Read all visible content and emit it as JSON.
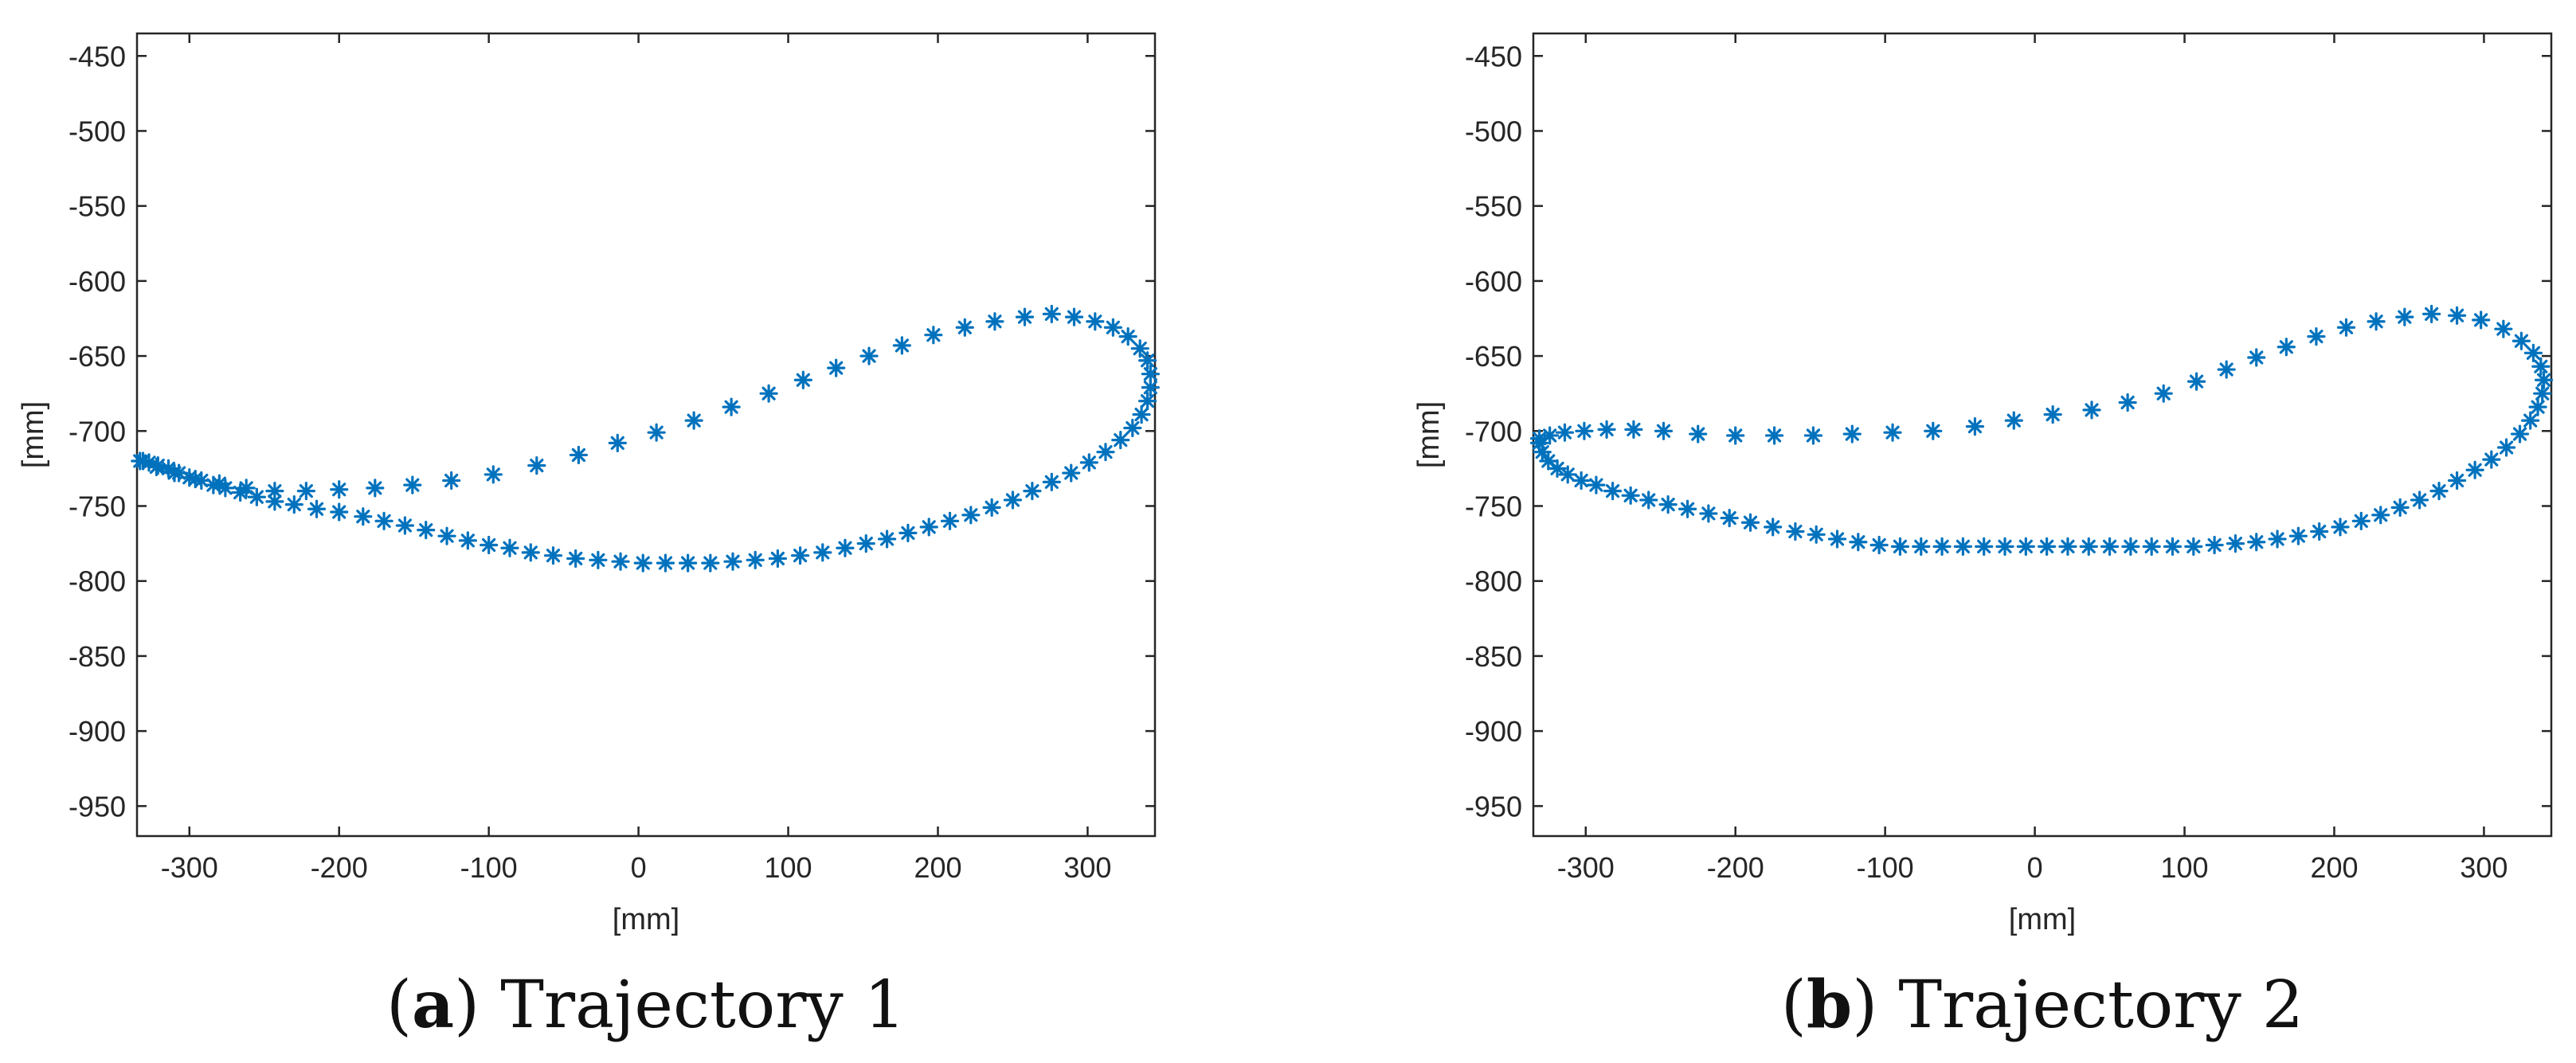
{
  "colors": {
    "marker": "#0072BD",
    "axis": "#262626"
  },
  "panels": [
    {
      "caption_letter": "a",
      "caption_title": "Trajectory 1"
    },
    {
      "caption_letter": "b",
      "caption_title": "Trajectory 2"
    }
  ],
  "chart_data": [
    {
      "type": "scatter",
      "title": "Trajectory 1",
      "marker": "asterisk",
      "xlabel": "[mm]",
      "ylabel": "[mm]",
      "xlim": [
        -335,
        345
      ],
      "ylim": [
        -970,
        -435
      ],
      "xticks": [
        -300,
        -200,
        -100,
        0,
        100,
        200,
        300
      ],
      "yticks": [
        -450,
        -500,
        -550,
        -600,
        -650,
        -700,
        -750,
        -800,
        -850,
        -900,
        -950
      ],
      "points": [
        [
          -333,
          -720
        ],
        [
          -327,
          -721
        ],
        [
          -321,
          -723
        ],
        [
          -314,
          -725
        ],
        [
          -307,
          -728
        ],
        [
          -300,
          -731
        ],
        [
          -292,
          -733
        ],
        [
          -284,
          -736
        ],
        [
          -276,
          -738
        ],
        [
          -266,
          -741
        ],
        [
          -255,
          -744
        ],
        [
          -243,
          -747
        ],
        [
          -230,
          -749
        ],
        [
          -215,
          -752
        ],
        [
          -200,
          -754
        ],
        [
          -184,
          -757
        ],
        [
          -170,
          -760
        ],
        [
          -156,
          -763
        ],
        [
          -142,
          -766
        ],
        [
          -128,
          -770
        ],
        [
          -114,
          -773
        ],
        [
          -100,
          -776
        ],
        [
          -86,
          -778
        ],
        [
          -72,
          -781
        ],
        [
          -57,
          -783
        ],
        [
          -42,
          -785
        ],
        [
          -27,
          -786
        ],
        [
          -12,
          -787
        ],
        [
          3,
          -788
        ],
        [
          18,
          -788
        ],
        [
          33,
          -788
        ],
        [
          48,
          -788
        ],
        [
          63,
          -787
        ],
        [
          78,
          -786
        ],
        [
          93,
          -785
        ],
        [
          108,
          -783
        ],
        [
          123,
          -781
        ],
        [
          138,
          -778
        ],
        [
          152,
          -775
        ],
        [
          166,
          -772
        ],
        [
          180,
          -768
        ],
        [
          194,
          -764
        ],
        [
          208,
          -760
        ],
        [
          222,
          -756
        ],
        [
          236,
          -751
        ],
        [
          250,
          -746
        ],
        [
          263,
          -740
        ],
        [
          276,
          -734
        ],
        [
          289,
          -728
        ],
        [
          301,
          -721
        ],
        [
          312,
          -714
        ],
        [
          322,
          -706
        ],
        [
          330,
          -698
        ],
        [
          336,
          -689
        ],
        [
          340,
          -680
        ],
        [
          342,
          -671
        ],
        [
          342,
          -662
        ],
        [
          340,
          -653
        ],
        [
          335,
          -645
        ],
        [
          327,
          -637
        ],
        [
          317,
          -631
        ],
        [
          305,
          -627
        ],
        [
          291,
          -624
        ],
        [
          276,
          -622
        ],
        [
          258,
          -624
        ],
        [
          238,
          -627
        ],
        [
          218,
          -631
        ],
        [
          197,
          -636
        ],
        [
          176,
          -643
        ],
        [
          154,
          -650
        ],
        [
          132,
          -658
        ],
        [
          110,
          -666
        ],
        [
          87,
          -675
        ],
        [
          62,
          -684
        ],
        [
          37,
          -693
        ],
        [
          12,
          -701
        ],
        [
          -14,
          -708
        ],
        [
          -40,
          -716
        ],
        [
          -68,
          -723
        ],
        [
          -97,
          -729
        ],
        [
          -125,
          -733
        ],
        [
          -151,
          -736
        ],
        [
          -176,
          -738
        ],
        [
          -200,
          -739
        ],
        [
          -222,
          -740
        ],
        [
          -243,
          -740
        ],
        [
          -262,
          -738
        ],
        [
          -280,
          -735
        ],
        [
          -296,
          -732
        ],
        [
          -310,
          -728
        ],
        [
          -322,
          -724
        ],
        [
          -331,
          -720
        ]
      ]
    },
    {
      "type": "scatter",
      "title": "Trajectory 2",
      "marker": "asterisk",
      "xlabel": "[mm]",
      "ylabel": "[mm]",
      "xlim": [
        -335,
        345
      ],
      "ylim": [
        -970,
        -435
      ],
      "xticks": [
        -300,
        -200,
        -100,
        0,
        100,
        200,
        300
      ],
      "yticks": [
        -450,
        -500,
        -550,
        -600,
        -650,
        -700,
        -750,
        -800,
        -850,
        -900,
        -950
      ],
      "points": [
        [
          -331,
          -708
        ],
        [
          -329,
          -714
        ],
        [
          -325,
          -720
        ],
        [
          -319,
          -725
        ],
        [
          -312,
          -729
        ],
        [
          -303,
          -733
        ],
        [
          -293,
          -736
        ],
        [
          -282,
          -740
        ],
        [
          -270,
          -743
        ],
        [
          -258,
          -746
        ],
        [
          -245,
          -749
        ],
        [
          -232,
          -752
        ],
        [
          -218,
          -755
        ],
        [
          -204,
          -758
        ],
        [
          -190,
          -761
        ],
        [
          -175,
          -764
        ],
        [
          -160,
          -767
        ],
        [
          -146,
          -769
        ],
        [
          -132,
          -772
        ],
        [
          -118,
          -774
        ],
        [
          -104,
          -776
        ],
        [
          -90,
          -777
        ],
        [
          -76,
          -777
        ],
        [
          -62,
          -777
        ],
        [
          -48,
          -777
        ],
        [
          -34,
          -777
        ],
        [
          -20,
          -777
        ],
        [
          -6,
          -777
        ],
        [
          8,
          -777
        ],
        [
          22,
          -777
        ],
        [
          36,
          -777
        ],
        [
          50,
          -777
        ],
        [
          64,
          -777
        ],
        [
          78,
          -777
        ],
        [
          92,
          -777
        ],
        [
          106,
          -777
        ],
        [
          120,
          -776
        ],
        [
          134,
          -775
        ],
        [
          148,
          -774
        ],
        [
          162,
          -772
        ],
        [
          176,
          -770
        ],
        [
          190,
          -767
        ],
        [
          204,
          -764
        ],
        [
          218,
          -760
        ],
        [
          231,
          -756
        ],
        [
          244,
          -751
        ],
        [
          257,
          -746
        ],
        [
          270,
          -740
        ],
        [
          282,
          -733
        ],
        [
          294,
          -726
        ],
        [
          305,
          -719
        ],
        [
          315,
          -711
        ],
        [
          324,
          -702
        ],
        [
          331,
          -693
        ],
        [
          336,
          -684
        ],
        [
          339,
          -675
        ],
        [
          340,
          -666
        ],
        [
          338,
          -657
        ],
        [
          333,
          -648
        ],
        [
          325,
          -640
        ],
        [
          313,
          -632
        ],
        [
          298,
          -626
        ],
        [
          282,
          -623
        ],
        [
          265,
          -622
        ],
        [
          247,
          -624
        ],
        [
          228,
          -627
        ],
        [
          208,
          -631
        ],
        [
          188,
          -637
        ],
        [
          168,
          -644
        ],
        [
          148,
          -651
        ],
        [
          128,
          -659
        ],
        [
          108,
          -667
        ],
        [
          86,
          -675
        ],
        [
          62,
          -681
        ],
        [
          38,
          -686
        ],
        [
          12,
          -689
        ],
        [
          -14,
          -693
        ],
        [
          -40,
          -697
        ],
        [
          -68,
          -700
        ],
        [
          -95,
          -701
        ],
        [
          -122,
          -702
        ],
        [
          -148,
          -703
        ],
        [
          -174,
          -703
        ],
        [
          -200,
          -703
        ],
        [
          -225,
          -702
        ],
        [
          -248,
          -700
        ],
        [
          -268,
          -699
        ],
        [
          -286,
          -699
        ],
        [
          -301,
          -700
        ],
        [
          -314,
          -701
        ],
        [
          -324,
          -703
        ],
        [
          -331,
          -705
        ]
      ]
    }
  ]
}
